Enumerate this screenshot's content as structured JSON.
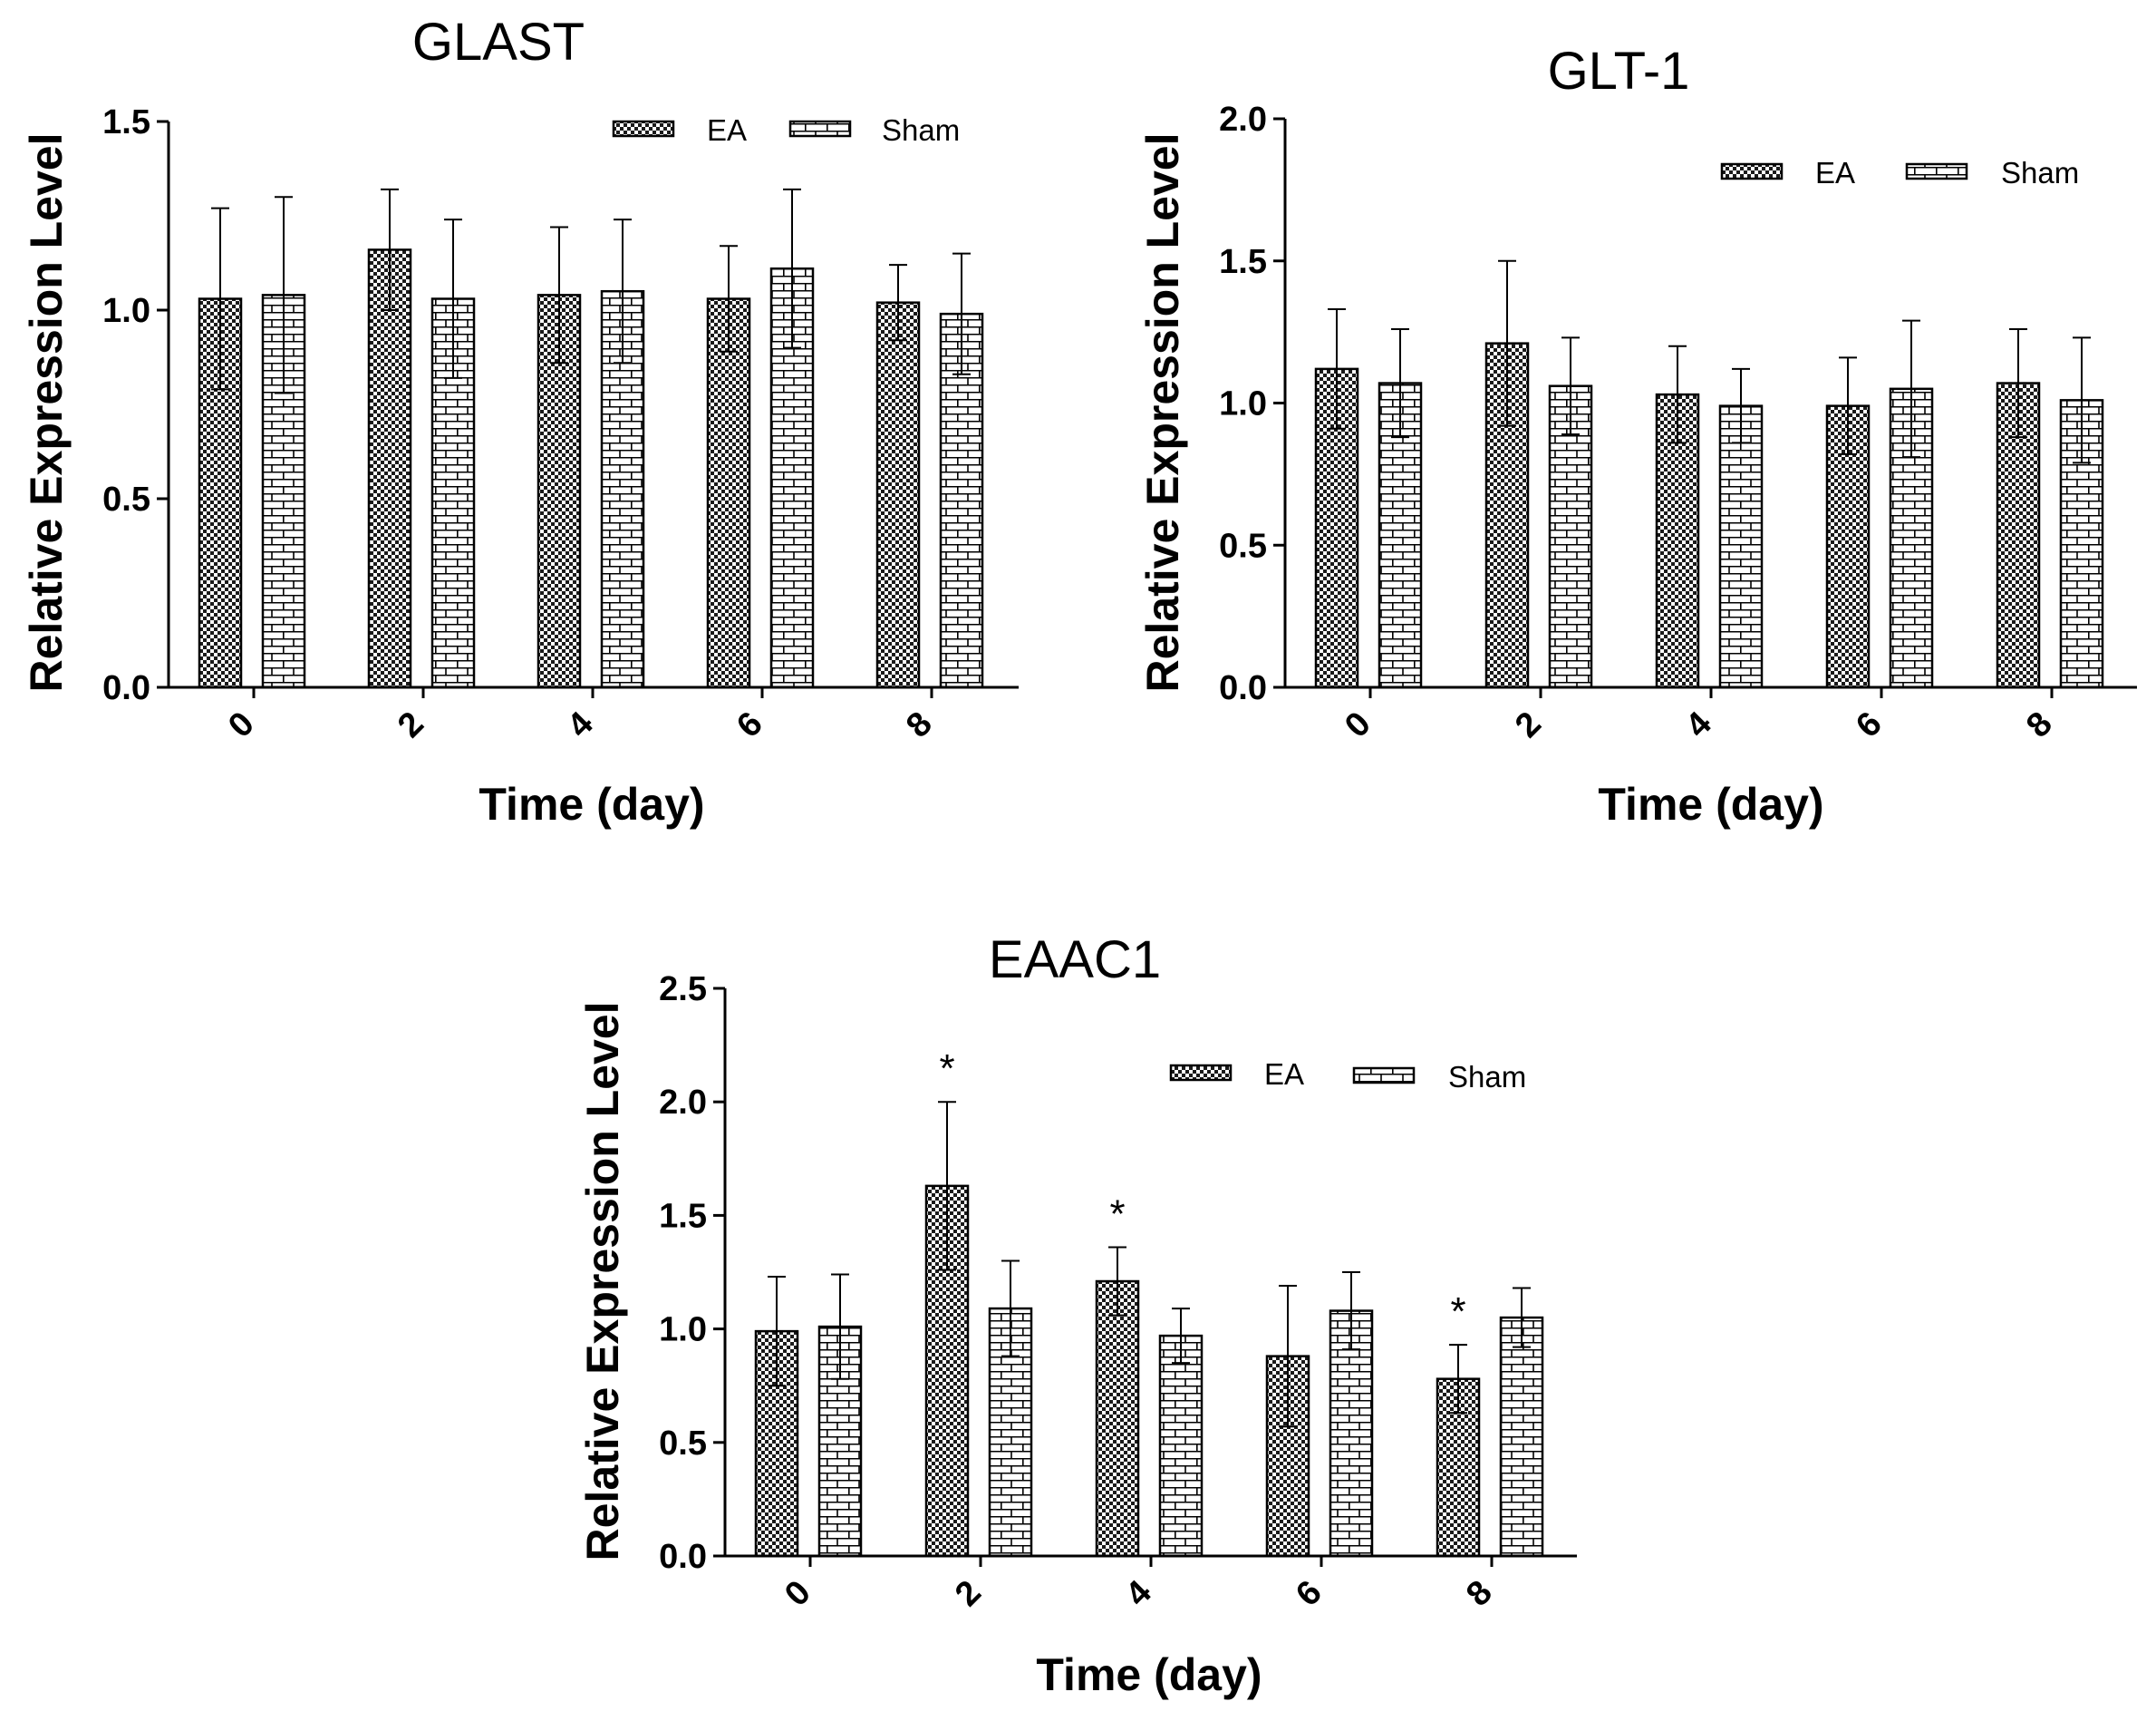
{
  "figure": {
    "panels": [
      "GLAST",
      "GLT-1",
      "EAAC1"
    ]
  },
  "chart_data": [
    {
      "id": "glast",
      "type": "bar",
      "title": "GLAST",
      "xlabel": "Time (day)",
      "ylabel": "Relative Expression Level",
      "categories": [
        "0",
        "2",
        "4",
        "6",
        "8"
      ],
      "ylim": [
        0,
        1.5
      ],
      "yticks": [
        "0.0",
        "0.5",
        "1.0",
        "1.5"
      ],
      "legend_position": "top-right",
      "series": [
        {
          "name": "EA",
          "pattern": "checker",
          "values": [
            1.03,
            1.16,
            1.04,
            1.03,
            1.02
          ],
          "errors": [
            0.24,
            0.16,
            0.18,
            0.14,
            0.1
          ]
        },
        {
          "name": "Sham",
          "pattern": "brick",
          "values": [
            1.04,
            1.03,
            1.05,
            1.11,
            0.99
          ],
          "errors": [
            0.26,
            0.21,
            0.19,
            0.21,
            0.16
          ]
        }
      ],
      "annotations": []
    },
    {
      "id": "glt1",
      "type": "bar",
      "title": "GLT-1",
      "xlabel": "Time (day)",
      "ylabel": "Relative Expression Level",
      "categories": [
        "0",
        "2",
        "4",
        "6",
        "8"
      ],
      "ylim": [
        0,
        2.0
      ],
      "yticks": [
        "0.0",
        "0.5",
        "1.0",
        "1.5",
        "2.0"
      ],
      "legend_position": "top-right",
      "series": [
        {
          "name": "EA",
          "pattern": "checker",
          "values": [
            1.12,
            1.21,
            1.03,
            0.99,
            1.07
          ],
          "errors": [
            0.21,
            0.29,
            0.17,
            0.17,
            0.19
          ]
        },
        {
          "name": "Sham",
          "pattern": "brick",
          "values": [
            1.07,
            1.06,
            0.99,
            1.05,
            1.01
          ],
          "errors": [
            0.19,
            0.17,
            0.13,
            0.24,
            0.22
          ]
        }
      ],
      "annotations": []
    },
    {
      "id": "eaac1",
      "type": "bar",
      "title": "EAAC1",
      "xlabel": "Time (day)",
      "ylabel": "Relative Expression Level",
      "categories": [
        "0",
        "2",
        "4",
        "6",
        "8"
      ],
      "ylim": [
        0,
        2.5
      ],
      "yticks": [
        "0.0",
        "0.5",
        "1.0",
        "1.5",
        "2.0",
        "2.5"
      ],
      "legend_position": "top-right",
      "series": [
        {
          "name": "EA",
          "pattern": "checker",
          "values": [
            0.99,
            1.63,
            1.21,
            0.88,
            0.78
          ],
          "errors": [
            0.24,
            0.37,
            0.15,
            0.31,
            0.15
          ]
        },
        {
          "name": "Sham",
          "pattern": "brick",
          "values": [
            1.01,
            1.09,
            0.97,
            1.08,
            1.05
          ],
          "errors": [
            0.23,
            0.21,
            0.12,
            0.17,
            0.13
          ]
        }
      ],
      "annotations": [
        {
          "category": "2",
          "series": "EA",
          "text": "*"
        },
        {
          "category": "4",
          "series": "EA",
          "text": "*"
        },
        {
          "category": "8",
          "series": "EA",
          "text": "*"
        }
      ]
    }
  ]
}
